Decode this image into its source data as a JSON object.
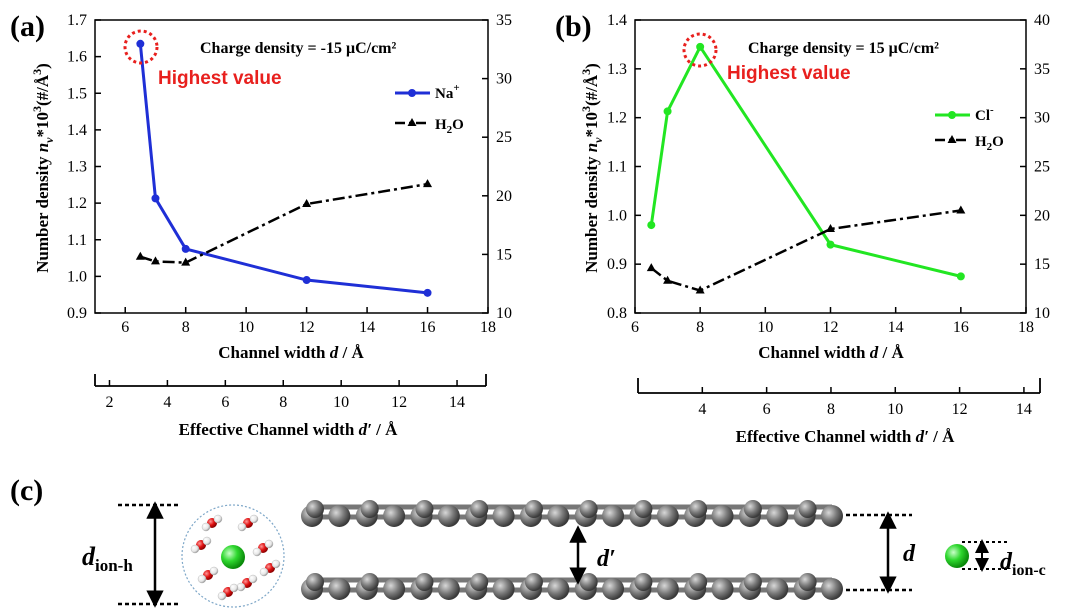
{
  "chart_data": [
    {
      "panel": "(a)",
      "type": "line",
      "x_ticks": [
        "6",
        "8",
        "10",
        "12",
        "14",
        "16",
        "18"
      ],
      "xlim": [
        5,
        18
      ],
      "y_ticks": [
        "0.9",
        "1.0",
        "1.1",
        "1.2",
        "1.3",
        "1.4",
        "1.5",
        "1.6",
        "1.7"
      ],
      "ylim": [
        0.9,
        1.7
      ],
      "y2_ticks": [
        "10",
        "15",
        "20",
        "25",
        "30",
        "35"
      ],
      "y2lim": [
        10,
        35
      ],
      "xlabel": "Channel width d / Å",
      "ylabel": "Number density nv*10³(#/Å³)",
      "annotation": "Charge density = -15 μC/cm²",
      "highlight": "Highest value",
      "secondary_axis": {
        "label": "Effective Channel width d′ / Å",
        "ticks": [
          "2",
          "4",
          "6",
          "8",
          "10",
          "12",
          "14"
        ],
        "lim": [
          1.5,
          15
        ]
      },
      "series": [
        {
          "name": "Na⁺",
          "axis": "left",
          "color": "#1f2fd6",
          "x": [
            6.5,
            7.0,
            8.0,
            12.0,
            16.0
          ],
          "values": [
            1.635,
            1.213,
            1.075,
            0.99,
            0.955
          ]
        },
        {
          "name": "H₂O",
          "axis": "right",
          "color": "#000000",
          "x": [
            6.5,
            7.0,
            8.0,
            12.0,
            16.0
          ],
          "values": [
            14.8,
            14.4,
            14.3,
            19.3,
            21.0
          ]
        }
      ]
    },
    {
      "panel": "(b)",
      "type": "line",
      "x_ticks": [
        "6",
        "8",
        "10",
        "12",
        "14",
        "16",
        "18"
      ],
      "xlim": [
        6,
        18
      ],
      "y_ticks": [
        "0.8",
        "0.9",
        "1.0",
        "1.1",
        "1.2",
        "1.3",
        "1.4"
      ],
      "ylim": [
        0.8,
        1.4
      ],
      "y2_ticks": [
        "10",
        "15",
        "20",
        "25",
        "30",
        "35",
        "40"
      ],
      "y2lim": [
        10,
        40
      ],
      "xlabel": "Channel width d / Å",
      "ylabel": "Number density nv*10³(#/Å³)",
      "annotation": "Charge density = 15 μC/cm²",
      "highlight": "Highest value",
      "secondary_axis": {
        "label": "Effective Channel width d′ / Å",
        "ticks": [
          "4",
          "6",
          "8",
          "10",
          "12",
          "14"
        ],
        "lim": [
          2,
          14.5
        ]
      },
      "series": [
        {
          "name": "Cl⁻",
          "axis": "left",
          "color": "#22e622",
          "x": [
            6.5,
            7.0,
            8.0,
            12.0,
            16.0
          ],
          "values": [
            0.98,
            1.213,
            1.345,
            0.94,
            0.875
          ]
        },
        {
          "name": "H₂O",
          "axis": "right",
          "color": "#000000",
          "x": [
            6.5,
            7.0,
            8.0,
            12.0,
            16.0
          ],
          "values": [
            14.6,
            13.3,
            12.3,
            18.6,
            20.5
          ]
        }
      ]
    }
  ],
  "diagram": {
    "panel": "(c)",
    "label_ion_h": "d",
    "label_ion_h_sub": "ion-h",
    "label_d_prime": "d′",
    "label_d": "d",
    "label_ion_c": "d",
    "label_ion_c_sub": "ion-c"
  },
  "colors": {
    "na": "#1f2fd6",
    "cl": "#22e622",
    "highlight": "#e8201e",
    "carbon": "#6e6e6e"
  }
}
